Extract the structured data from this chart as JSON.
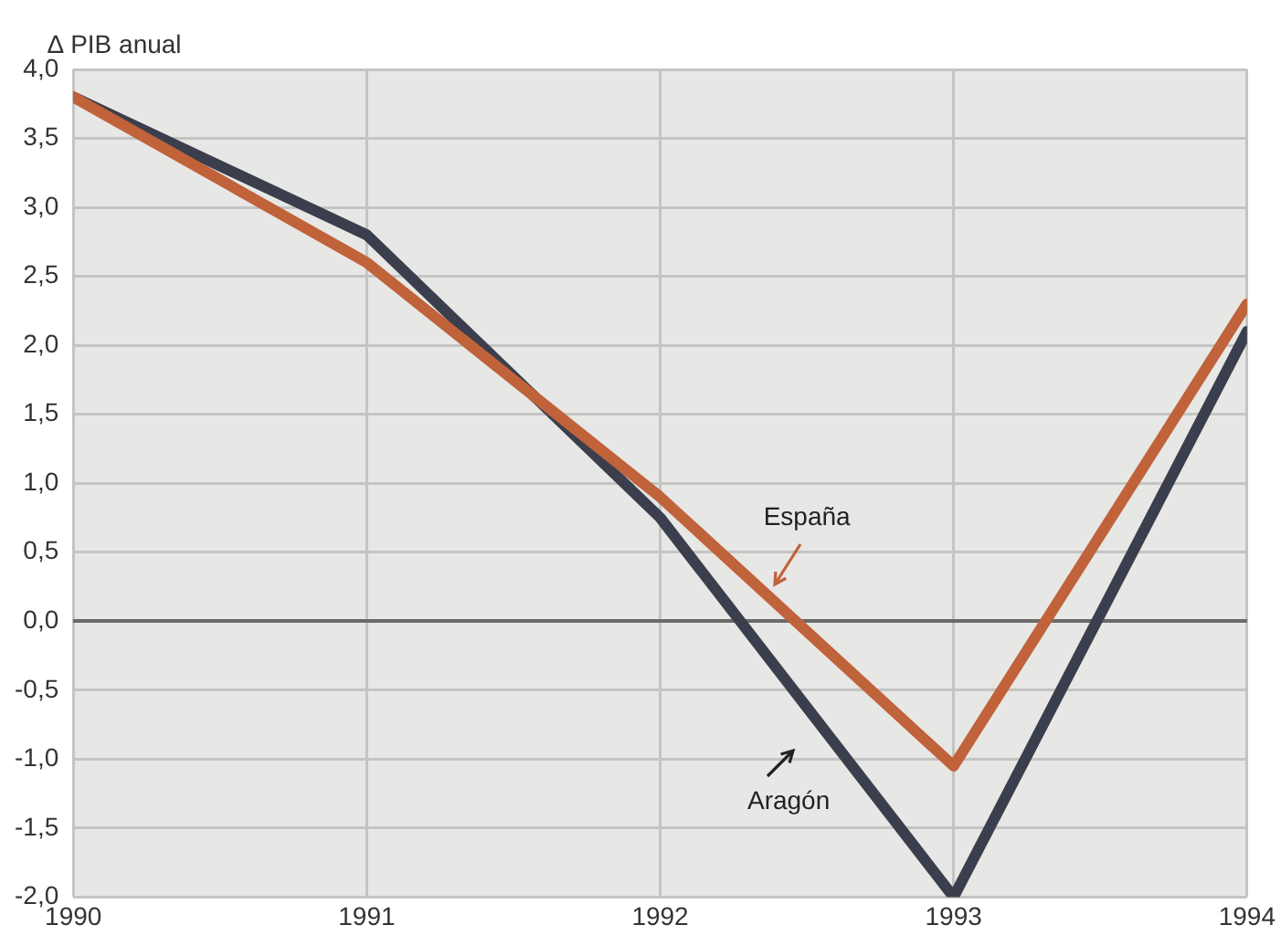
{
  "chart_data": {
    "type": "line",
    "ylabel": "∆ PIB anual",
    "x": [
      1990,
      1991,
      1992,
      1993,
      1994
    ],
    "series": [
      {
        "name": "España",
        "color": "#c0623a",
        "values": [
          3.8,
          2.6,
          0.9,
          -1.05,
          2.3
        ]
      },
      {
        "name": "Aragón",
        "color": "#3b3e4c",
        "values": [
          3.8,
          2.8,
          0.75,
          -2.0,
          2.1
        ]
      }
    ],
    "xlim": [
      1990,
      1994
    ],
    "xticks": [
      1990,
      1991,
      1992,
      1993,
      1994
    ],
    "ylim": [
      -2,
      4
    ],
    "yticks": [
      {
        "value": -2,
        "label": "-2,0"
      },
      {
        "value": -1.5,
        "label": "-1,5"
      },
      {
        "value": -1,
        "label": "-1,0"
      },
      {
        "value": -0.5,
        "label": "-0,5"
      },
      {
        "value": 0,
        "label": "0,0"
      },
      {
        "value": 0.5,
        "label": "0,5"
      },
      {
        "value": 1,
        "label": "1,0"
      },
      {
        "value": 1.5,
        "label": "1,5"
      },
      {
        "value": 2,
        "label": "2,0"
      },
      {
        "value": 2.5,
        "label": "2,5"
      },
      {
        "value": 3,
        "label": "3,0"
      },
      {
        "value": 3.5,
        "label": "3,5"
      },
      {
        "value": 4,
        "label": "4,0"
      }
    ],
    "grid": true,
    "legend": false,
    "marker": "none",
    "line_style": "solid"
  }
}
